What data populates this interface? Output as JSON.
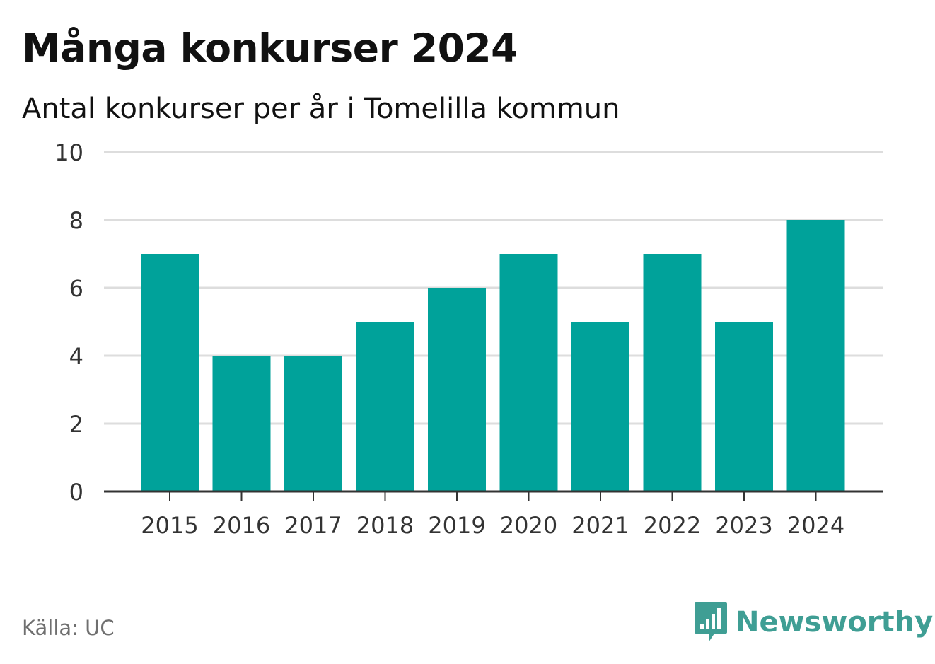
{
  "chart_data": {
    "type": "bar",
    "title": "Många konkurser 2024",
    "subtitle": "Antal konkurser per år i Tomelilla kommun",
    "categories": [
      "2015",
      "2016",
      "2017",
      "2018",
      "2019",
      "2020",
      "2021",
      "2022",
      "2023",
      "2024"
    ],
    "values": [
      7,
      4,
      4,
      5,
      6,
      7,
      5,
      7,
      5,
      8
    ],
    "ylim": [
      0,
      10
    ],
    "yticks": [
      "0",
      "2",
      "4",
      "6",
      "8",
      "10"
    ],
    "xlabel": "",
    "ylabel": "",
    "grid": true,
    "legend": "none",
    "bar_color": "#00a29a"
  },
  "source": "Källa: UC",
  "brand": {
    "name": "Newsworthy",
    "color": "#3f9e94",
    "icon": "bar-chart-icon"
  }
}
